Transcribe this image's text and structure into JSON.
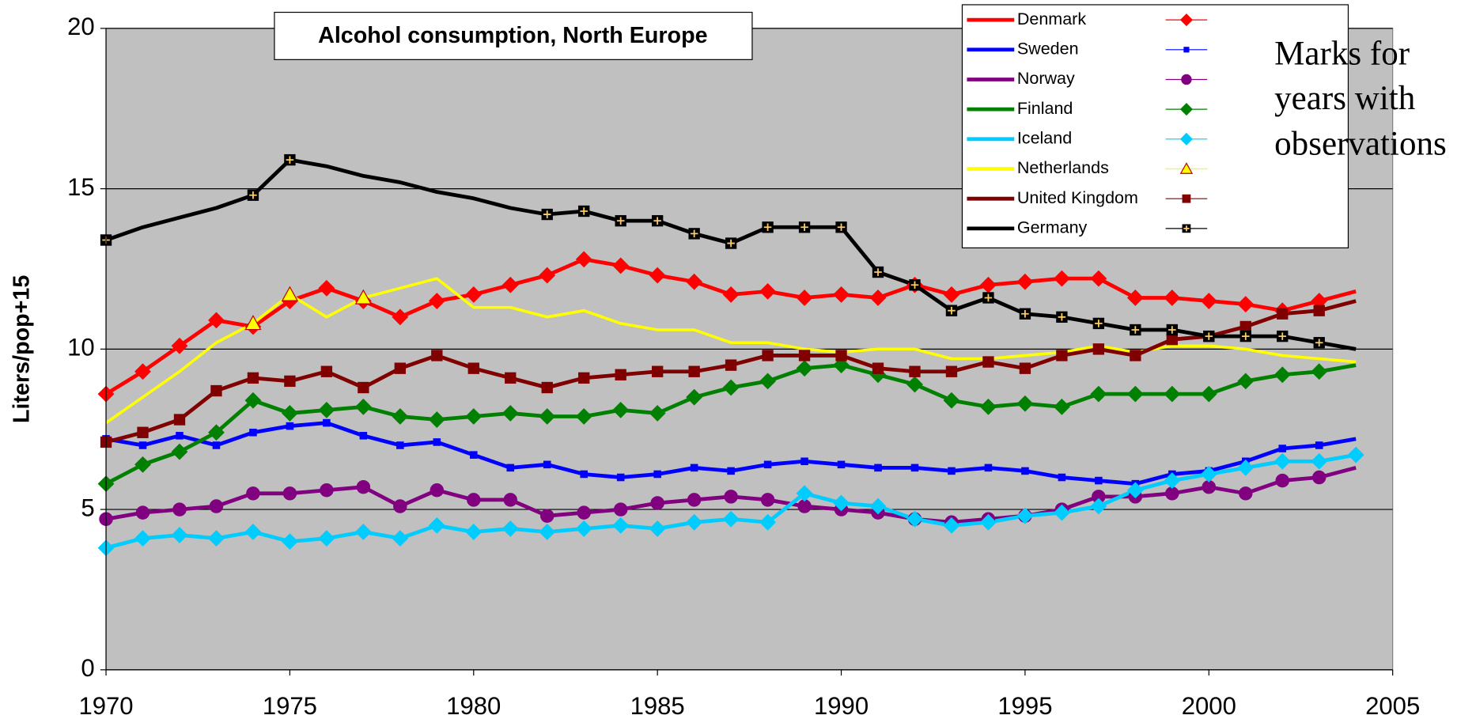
{
  "chart_data": {
    "type": "line",
    "title": "Alcohol consumption,  North Europe",
    "y_label": "Liters/pop+15",
    "annotation": [
      "Marks for",
      "years with",
      "observations"
    ],
    "x": [
      1970,
      1971,
      1972,
      1973,
      1974,
      1975,
      1976,
      1977,
      1978,
      1979,
      1980,
      1981,
      1982,
      1983,
      1984,
      1985,
      1986,
      1987,
      1988,
      1989,
      1990,
      1991,
      1992,
      1993,
      1994,
      1995,
      1996,
      1997,
      1998,
      1999,
      2000,
      2001,
      2002,
      2003,
      2004
    ],
    "xlim": [
      1970,
      2005
    ],
    "xticks": [
      1970,
      1975,
      1980,
      1985,
      1990,
      1995,
      2000,
      2005
    ],
    "ylim": [
      0,
      20
    ],
    "yticks": [
      0,
      5,
      10,
      15,
      20
    ],
    "grid": true,
    "background": "#c0c0c0",
    "legend": "top-right",
    "series": [
      {
        "name": "Denmark",
        "color": "#ff0000",
        "marker": "diamond",
        "marker_color": "#ff0000",
        "values": [
          8.6,
          9.3,
          10.1,
          10.9,
          10.7,
          11.5,
          11.9,
          11.5,
          11.0,
          11.5,
          11.7,
          12.0,
          12.3,
          12.8,
          12.6,
          12.3,
          12.1,
          11.7,
          11.8,
          11.6,
          11.7,
          11.6,
          12.0,
          11.7,
          12.0,
          12.1,
          12.2,
          12.2,
          11.6,
          11.6,
          11.5,
          11.4,
          11.2,
          11.5,
          11.8
        ],
        "marker_x": [
          1970,
          1971,
          1972,
          1973,
          1974,
          1975,
          1976,
          1977,
          1978,
          1979,
          1980,
          1981,
          1982,
          1983,
          1984,
          1985,
          1986,
          1987,
          1988,
          1989,
          1990,
          1991,
          1992,
          1993,
          1994,
          1995,
          1996,
          1997,
          1998,
          1999,
          2000,
          2001,
          2002,
          2003
        ]
      },
      {
        "name": "Sweden",
        "color": "#0000ff",
        "marker": "small-square",
        "marker_color": "#0000ff",
        "values": [
          7.2,
          7.0,
          7.3,
          7.0,
          7.4,
          7.6,
          7.7,
          7.3,
          7.0,
          7.1,
          6.7,
          6.3,
          6.4,
          6.1,
          6.0,
          6.1,
          6.3,
          6.2,
          6.4,
          6.5,
          6.4,
          6.3,
          6.3,
          6.2,
          6.3,
          6.2,
          6.0,
          5.9,
          5.8,
          6.1,
          6.2,
          6.5,
          6.9,
          7.0,
          7.2
        ],
        "marker_x": [
          1970,
          1971,
          1972,
          1973,
          1974,
          1975,
          1976,
          1977,
          1978,
          1979,
          1980,
          1981,
          1982,
          1983,
          1984,
          1985,
          1986,
          1987,
          1988,
          1989,
          1990,
          1991,
          1992,
          1993,
          1994,
          1995,
          1996,
          1997,
          1998,
          1999,
          2000,
          2001,
          2002,
          2003
        ]
      },
      {
        "name": "Norway",
        "color": "#800080",
        "marker": "circle",
        "marker_color": "#800080",
        "values": [
          4.7,
          4.9,
          5.0,
          5.1,
          5.5,
          5.5,
          5.6,
          5.7,
          5.1,
          5.6,
          5.3,
          5.3,
          4.8,
          4.9,
          5.0,
          5.2,
          5.3,
          5.4,
          5.3,
          5.1,
          5.0,
          4.9,
          4.7,
          4.6,
          4.7,
          4.8,
          5.0,
          5.4,
          5.4,
          5.5,
          5.7,
          5.5,
          5.9,
          6.0,
          6.3
        ],
        "marker_x": [
          1970,
          1971,
          1972,
          1973,
          1974,
          1975,
          1976,
          1977,
          1978,
          1979,
          1980,
          1981,
          1982,
          1983,
          1984,
          1985,
          1986,
          1987,
          1988,
          1989,
          1990,
          1991,
          1992,
          1993,
          1994,
          1995,
          1996,
          1997,
          1998,
          1999,
          2000,
          2001,
          2002,
          2003
        ]
      },
      {
        "name": "Finland",
        "color": "#008000",
        "marker": "diamond",
        "marker_color": "#008000",
        "values": [
          5.8,
          6.4,
          6.8,
          7.4,
          8.4,
          8.0,
          8.1,
          8.2,
          7.9,
          7.8,
          7.9,
          8.0,
          7.9,
          7.9,
          8.1,
          8.0,
          8.5,
          8.8,
          9.0,
          9.4,
          9.5,
          9.2,
          8.9,
          8.4,
          8.2,
          8.3,
          8.2,
          8.6,
          8.6,
          8.6,
          8.6,
          9.0,
          9.2,
          9.3,
          9.5
        ],
        "marker_x": [
          1970,
          1971,
          1972,
          1973,
          1974,
          1975,
          1976,
          1977,
          1978,
          1979,
          1980,
          1981,
          1982,
          1983,
          1984,
          1985,
          1986,
          1987,
          1988,
          1989,
          1990,
          1991,
          1992,
          1993,
          1994,
          1995,
          1996,
          1997,
          1998,
          1999,
          2000,
          2001,
          2002,
          2003
        ]
      },
      {
        "name": "Iceland",
        "color": "#00ccff",
        "marker": "diamond",
        "marker_color": "#00ccff",
        "values": [
          3.8,
          4.1,
          4.2,
          4.1,
          4.3,
          4.0,
          4.1,
          4.3,
          4.1,
          4.5,
          4.3,
          4.4,
          4.3,
          4.4,
          4.5,
          4.4,
          4.6,
          4.7,
          4.6,
          5.5,
          5.2,
          5.1,
          4.7,
          4.5,
          4.6,
          4.8,
          4.9,
          5.1,
          5.6,
          5.9,
          6.1,
          6.3,
          6.5,
          6.5,
          6.7
        ],
        "marker_x": [
          1970,
          1971,
          1972,
          1973,
          1974,
          1975,
          1976,
          1977,
          1978,
          1979,
          1980,
          1981,
          1982,
          1983,
          1984,
          1985,
          1986,
          1987,
          1988,
          1989,
          1990,
          1991,
          1992,
          1993,
          1994,
          1995,
          1996,
          1997,
          1998,
          1999,
          2000,
          2001,
          2002,
          2003,
          2004
        ]
      },
      {
        "name": "Netherlands",
        "color": "#ffff00",
        "marker": "triangle",
        "marker_color": "#ffff00",
        "values": [
          7.7,
          8.5,
          9.3,
          10.2,
          10.8,
          11.7,
          11.0,
          11.6,
          11.9,
          12.2,
          11.3,
          11.3,
          11.0,
          11.2,
          10.8,
          10.6,
          10.6,
          10.2,
          10.2,
          10.0,
          9.9,
          10.0,
          10.0,
          9.7,
          9.7,
          9.8,
          9.9,
          10.1,
          9.9,
          10.1,
          10.1,
          10.0,
          9.8,
          9.7,
          9.6
        ],
        "marker_x": [
          1974,
          1975,
          1977
        ]
      },
      {
        "name": "United Kingdom",
        "color": "#800000",
        "marker": "square",
        "marker_color": "#800000",
        "values": [
          7.1,
          7.4,
          7.8,
          8.7,
          9.1,
          9.0,
          9.3,
          8.8,
          9.4,
          9.8,
          9.4,
          9.1,
          8.8,
          9.1,
          9.2,
          9.3,
          9.3,
          9.5,
          9.8,
          9.8,
          9.8,
          9.4,
          9.3,
          9.3,
          9.6,
          9.4,
          9.8,
          10.0,
          9.8,
          10.3,
          10.4,
          10.7,
          11.1,
          11.2,
          11.5
        ],
        "marker_x": [
          1970,
          1971,
          1972,
          1973,
          1974,
          1975,
          1976,
          1977,
          1978,
          1979,
          1980,
          1981,
          1982,
          1983,
          1984,
          1985,
          1986,
          1987,
          1988,
          1989,
          1990,
          1991,
          1992,
          1993,
          1994,
          1995,
          1996,
          1997,
          1998,
          1999,
          2000,
          2001,
          2002,
          2003
        ]
      },
      {
        "name": "Germany",
        "color": "#000000",
        "marker": "cross-square",
        "marker_color": "#000000",
        "values": [
          13.4,
          13.8,
          14.1,
          14.4,
          14.8,
          15.9,
          15.7,
          15.4,
          15.2,
          14.9,
          14.7,
          14.4,
          14.2,
          14.3,
          14.0,
          14.0,
          13.6,
          13.3,
          13.8,
          13.8,
          13.8,
          12.4,
          12.0,
          11.2,
          11.6,
          11.1,
          11.0,
          10.8,
          10.6,
          10.6,
          10.4,
          10.4,
          10.4,
          10.2,
          10.0
        ],
        "marker_x": [
          1970,
          1974,
          1975,
          1982,
          1983,
          1984,
          1985,
          1986,
          1987,
          1988,
          1989,
          1990,
          1991,
          1992,
          1993,
          1994,
          1995,
          1996,
          1997,
          1998,
          1999,
          2000,
          2001,
          2002,
          2003
        ]
      }
    ]
  }
}
